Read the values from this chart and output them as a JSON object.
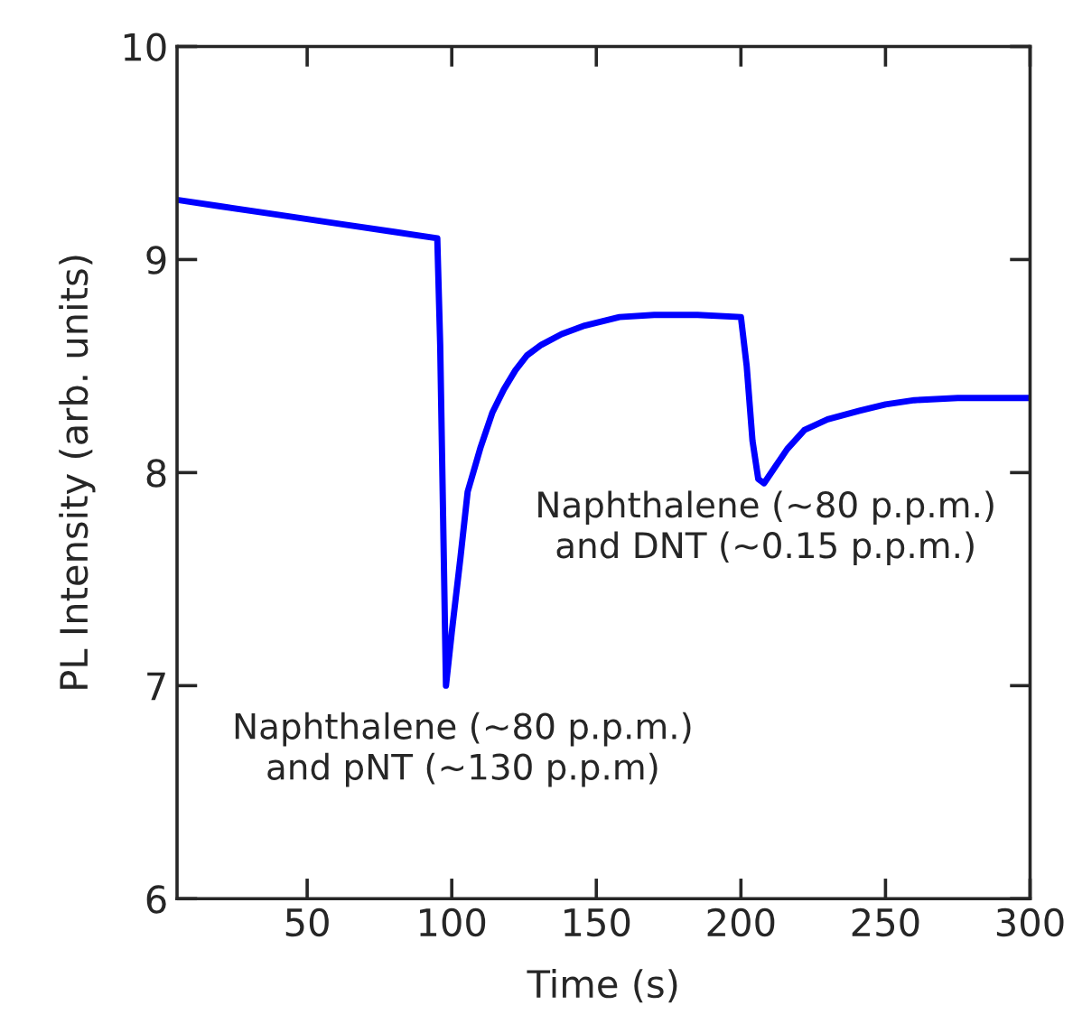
{
  "chart_data": {
    "type": "line",
    "xlabel": "Time (s)",
    "ylabel": "PL Intensity (arb. units)",
    "xlim": [
      5,
      300
    ],
    "ylim": [
      6,
      10
    ],
    "xticks": [
      50,
      100,
      150,
      200,
      250,
      300
    ],
    "yticks": [
      6,
      7,
      8,
      9,
      10
    ],
    "grid": false,
    "series": [
      {
        "color": "#0000ff",
        "x": [
          5,
          20,
          40,
          60,
          80,
          95,
          96,
          97,
          98,
          100,
          103,
          105.5,
          110,
          114,
          118,
          122,
          126,
          131,
          138,
          146,
          158,
          170,
          185,
          200,
          202,
          204,
          206,
          208,
          212,
          216,
          222,
          230,
          241,
          250,
          260,
          275,
          290,
          300
        ],
        "values": [
          9.28,
          9.25,
          9.21,
          9.17,
          9.13,
          9.1,
          8.6,
          7.8,
          7.0,
          7.25,
          7.6,
          7.91,
          8.12,
          8.28,
          8.39,
          8.48,
          8.55,
          8.6,
          8.65,
          8.69,
          8.73,
          8.74,
          8.74,
          8.73,
          8.5,
          8.15,
          7.97,
          7.95,
          8.03,
          8.11,
          8.2,
          8.25,
          8.29,
          8.32,
          8.34,
          8.35,
          8.35,
          8.35
        ]
      }
    ],
    "annotations": [
      "Naphthalene (~80 p.p.m.)\nand pNT (~130 p.p.m)",
      "Naphthalene (~80 p.p.m.)\nand DNT (~0.15 p.p.m.)"
    ]
  }
}
